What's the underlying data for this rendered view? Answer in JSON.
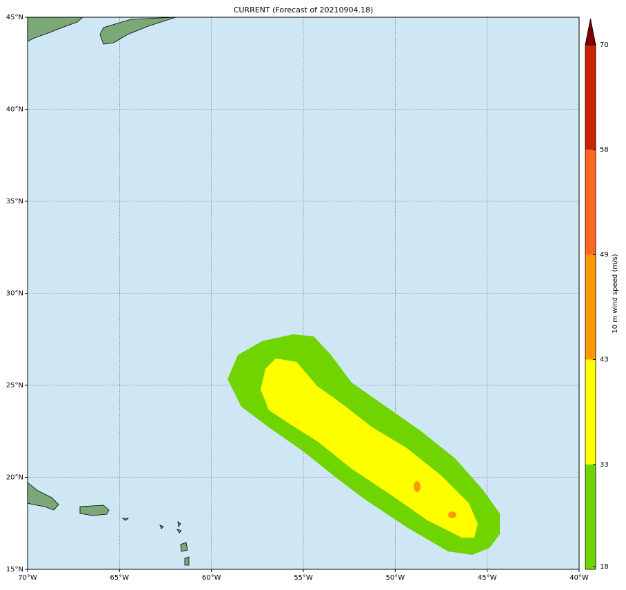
{
  "map": {
    "title": "CURRENT (Forecast of 20210904.18)",
    "lon_range": [
      -70,
      -40
    ],
    "lat_range": [
      15,
      45
    ],
    "lon_ticks": [
      {
        "value": -70,
        "label": "70°W"
      },
      {
        "value": -65,
        "label": "65°W"
      },
      {
        "value": -60,
        "label": "60°W"
      },
      {
        "value": -55,
        "label": "55°W"
      },
      {
        "value": -50,
        "label": "50°W"
      },
      {
        "value": -45,
        "label": "45°W"
      },
      {
        "value": -40,
        "label": "40°W"
      }
    ],
    "lat_ticks": [
      {
        "value": 15,
        "label": "15°N"
      },
      {
        "value": 20,
        "label": "20°N"
      },
      {
        "value": 25,
        "label": "25°N"
      },
      {
        "value": 30,
        "label": "30°N"
      },
      {
        "value": 35,
        "label": "35°N"
      },
      {
        "value": 40,
        "label": "40°N"
      },
      {
        "value": 45,
        "label": "45°N"
      }
    ],
    "grid": true,
    "colorbar": {
      "label": "10 m wind speed (m/s)",
      "ticks": [
        18,
        33,
        43,
        49,
        58,
        70
      ],
      "colors": [
        "#6fd400",
        "#ffff00",
        "#ff9900",
        "#ff6622",
        "#cc2200"
      ],
      "extend_color": "#800000"
    }
  }
}
